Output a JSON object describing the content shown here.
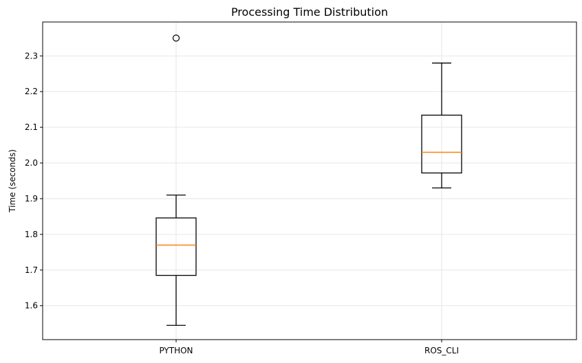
{
  "chart_data": {
    "type": "box",
    "title": "Processing Time Distribution",
    "xlabel": "",
    "ylabel": "Time (seconds)",
    "categories": [
      "PYTHON",
      "ROS_CLI"
    ],
    "ylim": [
      1.505,
      2.395
    ],
    "yticks": [
      1.6,
      1.7,
      1.8,
      1.9,
      2.0,
      2.1,
      2.2,
      2.3
    ],
    "ytick_labels": [
      "1.6",
      "1.7",
      "1.8",
      "1.9",
      "2.0",
      "2.1",
      "2.2",
      "2.3"
    ],
    "grid": true,
    "boxes": [
      {
        "category": "PYTHON",
        "whisker_low": 1.545,
        "q1": 1.685,
        "median": 1.77,
        "q3": 1.846,
        "whisker_high": 1.91,
        "outliers": [
          2.35
        ]
      },
      {
        "category": "ROS_CLI",
        "whisker_low": 1.93,
        "q1": 1.972,
        "median": 2.03,
        "q3": 2.134,
        "whisker_high": 2.28,
        "outliers": []
      }
    ],
    "colors": {
      "box": "#000000",
      "median": "#ff7f0e",
      "grid": "#e6e6e6"
    }
  }
}
